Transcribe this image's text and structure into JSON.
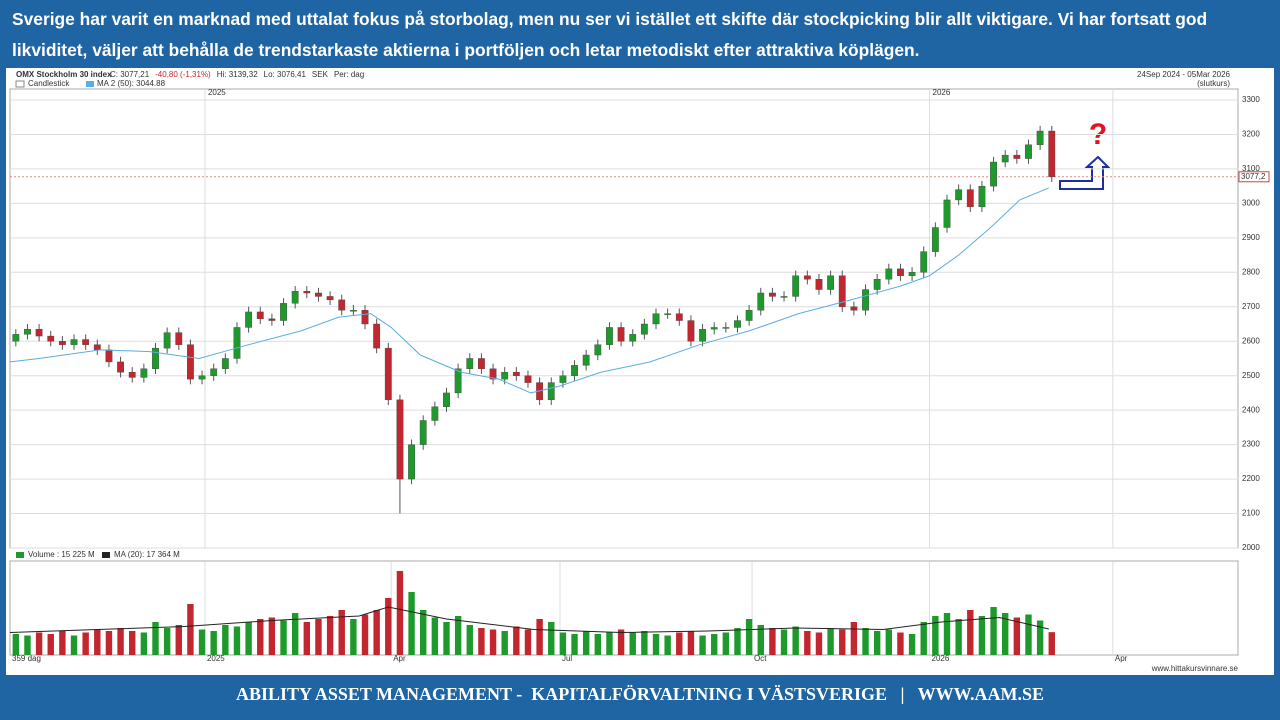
{
  "header": {
    "text": "Sverige har varit en marknad med uttalat fokus på storbolag, men nu ser vi istället ett skifte där stockpicking blir allt viktigare. Vi har fortsatt god likviditet, väljer att behålla de trendstarkaste aktierna i portföljen och letar metodiskt efter attraktiva köplägen."
  },
  "footer": {
    "text": "ABILITY ASSET MANAGEMENT -  KAPITALFÖRVALTNING I VÄSTSVERIGE   |   WWW.AAM.SE"
  },
  "chart_data": {
    "type": "candlestick",
    "title": "OMX Stockholm 30 index",
    "info": [
      "C: 3077,21",
      "-40,80 (-1,31%)",
      "Hi: 3139,32",
      "Lo: 3076,41",
      "SEK",
      "Per: dag"
    ],
    "period": "24Sep 2024 - 05Mar 2026",
    "period_note": "(slutkurs)",
    "series_name": "Candlestick",
    "period_count": "359 dag",
    "source": "www.hittakursvinnare.se",
    "up_color": "#1e9a2c",
    "down_color": "#c2262e",
    "x": [
      2,
      6,
      10,
      14,
      18,
      22,
      26,
      30,
      34,
      38,
      42,
      46,
      50,
      54,
      58,
      62,
      66,
      70,
      74,
      78,
      82,
      86,
      90,
      94,
      98,
      102,
      106,
      110,
      114,
      118,
      122,
      126,
      130,
      134,
      138,
      142,
      146,
      150,
      154,
      158,
      162,
      166,
      170,
      174,
      178,
      182,
      186,
      190,
      194,
      198,
      202,
      206,
      210,
      214,
      218,
      222,
      226,
      230,
      234,
      238,
      242,
      246,
      250,
      254,
      258,
      262,
      266,
      270,
      274,
      278,
      282,
      286,
      290,
      294,
      298,
      302,
      306,
      310,
      314,
      318,
      322,
      326,
      330,
      334,
      338,
      342,
      346,
      350,
      354,
      358
    ],
    "open": [
      2600,
      2620,
      2635,
      2615,
      2600,
      2590,
      2605,
      2590,
      2575,
      2540,
      2510,
      2495,
      2520,
      2580,
      2625,
      2590,
      2490,
      2500,
      2520,
      2550,
      2640,
      2685,
      2665,
      2660,
      2710,
      2745,
      2740,
      2730,
      2720,
      2690,
      2690,
      2650,
      2580,
      2430,
      2200,
      2300,
      2370,
      2410,
      2450,
      2520,
      2550,
      2520,
      2490,
      2510,
      2500,
      2480,
      2430,
      2480,
      2500,
      2530,
      2560,
      2590,
      2640,
      2600,
      2620,
      2650,
      2680,
      2680,
      2660,
      2600,
      2635,
      2640,
      2640,
      2660,
      2690,
      2740,
      2730,
      2730,
      2790,
      2780,
      2750,
      2790,
      2700,
      2690,
      2750,
      2780,
      2810,
      2790,
      2800,
      2860,
      2930,
      3010,
      3040,
      2990,
      3050,
      3120,
      3140,
      3130,
      3170,
      3210
    ],
    "high": [
      2635,
      2650,
      2650,
      2630,
      2615,
      2620,
      2620,
      2605,
      2590,
      2555,
      2525,
      2535,
      2595,
      2640,
      2640,
      2605,
      2515,
      2535,
      2565,
      2655,
      2700,
      2700,
      2680,
      2725,
      2760,
      2760,
      2755,
      2745,
      2735,
      2705,
      2705,
      2665,
      2595,
      2445,
      2315,
      2385,
      2425,
      2465,
      2535,
      2565,
      2565,
      2535,
      2525,
      2525,
      2515,
      2495,
      2495,
      2515,
      2545,
      2575,
      2605,
      2655,
      2655,
      2635,
      2665,
      2695,
      2695,
      2695,
      2675,
      2650,
      2655,
      2655,
      2675,
      2705,
      2755,
      2755,
      2745,
      2805,
      2805,
      2795,
      2805,
      2805,
      2715,
      2765,
      2795,
      2825,
      2825,
      2815,
      2875,
      2945,
      3025,
      3055,
      3055,
      3065,
      3135,
      3155,
      3155,
      3185,
      3225,
      3225
    ],
    "low": [
      2585,
      2605,
      2600,
      2585,
      2575,
      2575,
      2575,
      2560,
      2525,
      2495,
      2480,
      2480,
      2505,
      2565,
      2575,
      2475,
      2475,
      2485,
      2505,
      2535,
      2625,
      2650,
      2645,
      2645,
      2695,
      2725,
      2715,
      2705,
      2675,
      2675,
      2635,
      2565,
      2415,
      2100,
      2185,
      2285,
      2355,
      2395,
      2435,
      2505,
      2505,
      2475,
      2475,
      2485,
      2465,
      2415,
      2415,
      2465,
      2485,
      2515,
      2545,
      2575,
      2585,
      2585,
      2605,
      2635,
      2665,
      2645,
      2585,
      2585,
      2620,
      2625,
      2625,
      2645,
      2675,
      2715,
      2715,
      2715,
      2765,
      2735,
      2735,
      2685,
      2675,
      2675,
      2735,
      2765,
      2775,
      2775,
      2785,
      2845,
      2915,
      2995,
      2975,
      2975,
      3035,
      3105,
      3115,
      3115,
      3155,
      3062
    ],
    "close": [
      2620,
      2635,
      2615,
      2600,
      2590,
      2605,
      2590,
      2575,
      2540,
      2510,
      2495,
      2520,
      2580,
      2625,
      2590,
      2490,
      2500,
      2520,
      2550,
      2640,
      2685,
      2665,
      2660,
      2710,
      2745,
      2740,
      2730,
      2720,
      2690,
      2690,
      2650,
      2580,
      2430,
      2200,
      2300,
      2370,
      2410,
      2450,
      2520,
      2550,
      2520,
      2490,
      2510,
      2500,
      2480,
      2430,
      2480,
      2500,
      2530,
      2560,
      2590,
      2640,
      2600,
      2620,
      2650,
      2680,
      2680,
      2660,
      2600,
      2635,
      2640,
      2640,
      2660,
      2690,
      2740,
      2730,
      2730,
      2790,
      2780,
      2750,
      2790,
      2700,
      2690,
      2750,
      2780,
      2810,
      2790,
      2800,
      2860,
      2930,
      3010,
      3040,
      2990,
      3050,
      3120,
      3140,
      3130,
      3170,
      3210,
      3077
    ],
    "xlim": [
      0,
      422
    ],
    "xticks": [
      {
        "value": 67,
        "label": "2025"
      },
      {
        "value": 131,
        "label": "Apr"
      },
      {
        "value": 189,
        "label": "Jul"
      },
      {
        "value": 255,
        "label": "Oct"
      },
      {
        "value": 316,
        "label": "2026"
      },
      {
        "value": 379,
        "label": "Apr"
      }
    ],
    "ylim": [
      2000,
      3300
    ],
    "yticks": [
      2000,
      2100,
      2200,
      2300,
      2400,
      2500,
      2600,
      2700,
      2800,
      2900,
      3000,
      3100,
      3200,
      3300
    ],
    "last_price": {
      "value": 3077.2,
      "label": "3077,2"
    },
    "ma": {
      "name": "MA 2 (50): 3044.88",
      "color": "#5aaee2",
      "x": [
        0,
        10,
        31,
        48,
        65,
        82,
        100,
        113,
        124,
        131,
        141,
        155,
        168,
        179,
        189,
        203,
        220,
        237,
        254,
        271,
        289,
        306,
        316,
        326,
        337,
        347,
        357
      ],
      "values": [
        2540,
        2550,
        2575,
        2570,
        2550,
        2590,
        2630,
        2670,
        2680,
        2640,
        2560,
        2510,
        2490,
        2450,
        2470,
        2510,
        2540,
        2590,
        2630,
        2680,
        2720,
        2760,
        2790,
        2850,
        2930,
        3010,
        3044.88
      ]
    },
    "volume": {
      "name": "Volume : 15 225 M",
      "ylim": [
        0,
        60000
      ],
      "values": [
        14000,
        13000,
        15000,
        14000,
        16000,
        13000,
        15000,
        17000,
        16000,
        18000,
        16000,
        15000,
        22000,
        18000,
        20000,
        34000,
        17000,
        16000,
        20000,
        19000,
        22000,
        24000,
        25000,
        23000,
        28000,
        22000,
        24000,
        26000,
        30000,
        24000,
        27000,
        30000,
        38000,
        56000,
        42000,
        30000,
        25000,
        22000,
        26000,
        20000,
        18000,
        17000,
        16000,
        19000,
        17000,
        24000,
        22000,
        15000,
        14000,
        16000,
        14000,
        15000,
        17000,
        15000,
        16000,
        14000,
        13000,
        15000,
        16000,
        13000,
        14000,
        15000,
        18000,
        24000,
        20000,
        18000,
        17000,
        19000,
        16000,
        15000,
        18000,
        17000,
        22000,
        18000,
        16000,
        17000,
        15000,
        14000,
        22000,
        26000,
        28000,
        24000,
        30000,
        26000,
        32000,
        28000,
        25000,
        27000,
        23000,
        15225
      ],
      "ma": {
        "name": "MA (20): 17 364 M",
        "color": "#222222",
        "x": [
          0,
          30,
          60,
          90,
          120,
          130,
          150,
          180,
          210,
          240,
          270,
          300,
          320,
          340,
          357
        ],
        "values": [
          15000,
          17000,
          19000,
          23000,
          26000,
          32000,
          24000,
          17000,
          15000,
          16000,
          18000,
          17000,
          22000,
          25000,
          17364
        ]
      }
    }
  }
}
